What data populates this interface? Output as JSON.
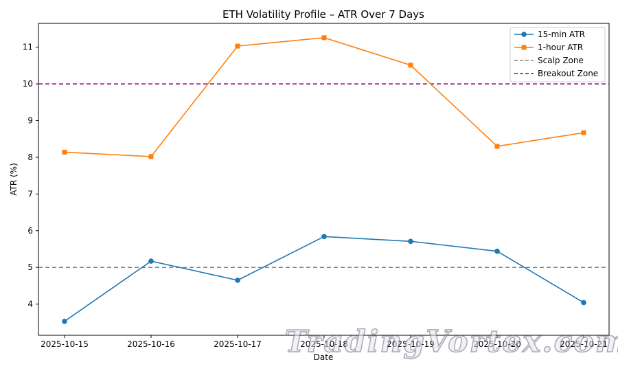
{
  "chart_data": {
    "type": "line",
    "title": "ETH Volatility Profile – ATR Over 7 Days",
    "xlabel": "Date",
    "ylabel": "ATR (%)",
    "categories": [
      "2025-10-15",
      "2025-10-16",
      "2025-10-17",
      "2025-10-18",
      "2025-10-19",
      "2025-10-20",
      "2025-10-21"
    ],
    "ylim": [
      3.15,
      11.65
    ],
    "yticks": [
      4,
      5,
      6,
      7,
      8,
      9,
      10,
      11
    ],
    "series": [
      {
        "name": "15-min ATR",
        "color": "#1f77b4",
        "marker": "circle",
        "values": [
          3.53,
          5.17,
          4.65,
          5.84,
          5.71,
          5.44,
          4.04
        ]
      },
      {
        "name": "1-hour ATR",
        "color": "#ff7f0e",
        "marker": "square",
        "values": [
          8.14,
          8.02,
          11.03,
          11.26,
          10.51,
          8.3,
          8.67
        ]
      }
    ],
    "reference_lines": [
      {
        "name": "Scalp Zone",
        "value": 5,
        "color": "#808080",
        "style": "dashed"
      },
      {
        "name": "Breakout Zone",
        "value": 10,
        "color": "#800080",
        "style": "dashed"
      }
    ],
    "legend_position": "top-right",
    "grid": false
  },
  "watermark": {
    "text": "TradingVortex.com"
  }
}
